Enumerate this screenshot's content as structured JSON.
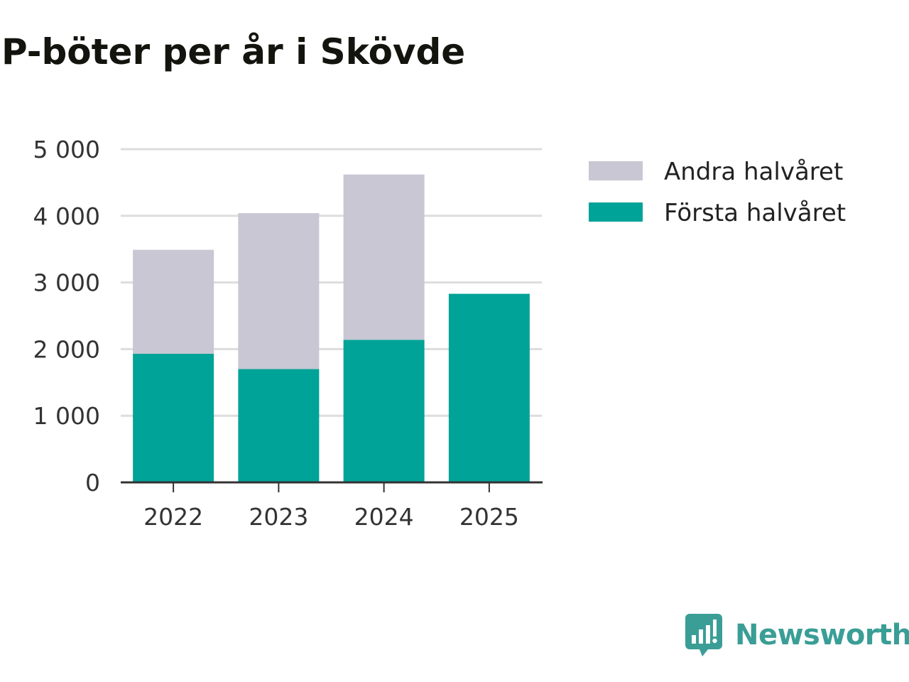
{
  "title": "P-böter per år i Skövde",
  "brand": {
    "name": "Newsworthy",
    "logo_icon": "newsworthy-logo-icon",
    "color": "#3a9e96"
  },
  "chart_data": {
    "type": "bar",
    "stacked": true,
    "categories": [
      "2022",
      "2023",
      "2024",
      "2025"
    ],
    "series": [
      {
        "name": "Första halvåret",
        "color": "#00a398",
        "values": [
          1930,
          1700,
          2140,
          2830
        ]
      },
      {
        "name": "Andra halvåret",
        "color": "#c8c7d3",
        "values": [
          1560,
          2340,
          2480,
          0
        ]
      }
    ],
    "ylim": [
      0,
      5000
    ],
    "yticks": [
      0,
      1000,
      2000,
      3000,
      4000,
      5000
    ],
    "ytick_labels": [
      "0",
      "1 000",
      "2 000",
      "3 000",
      "4 000",
      "5 000"
    ],
    "grid": true,
    "legend": {
      "placement": "right",
      "order": [
        "Andra halvåret",
        "Första halvåret"
      ]
    },
    "xlabel": "",
    "ylabel": ""
  }
}
